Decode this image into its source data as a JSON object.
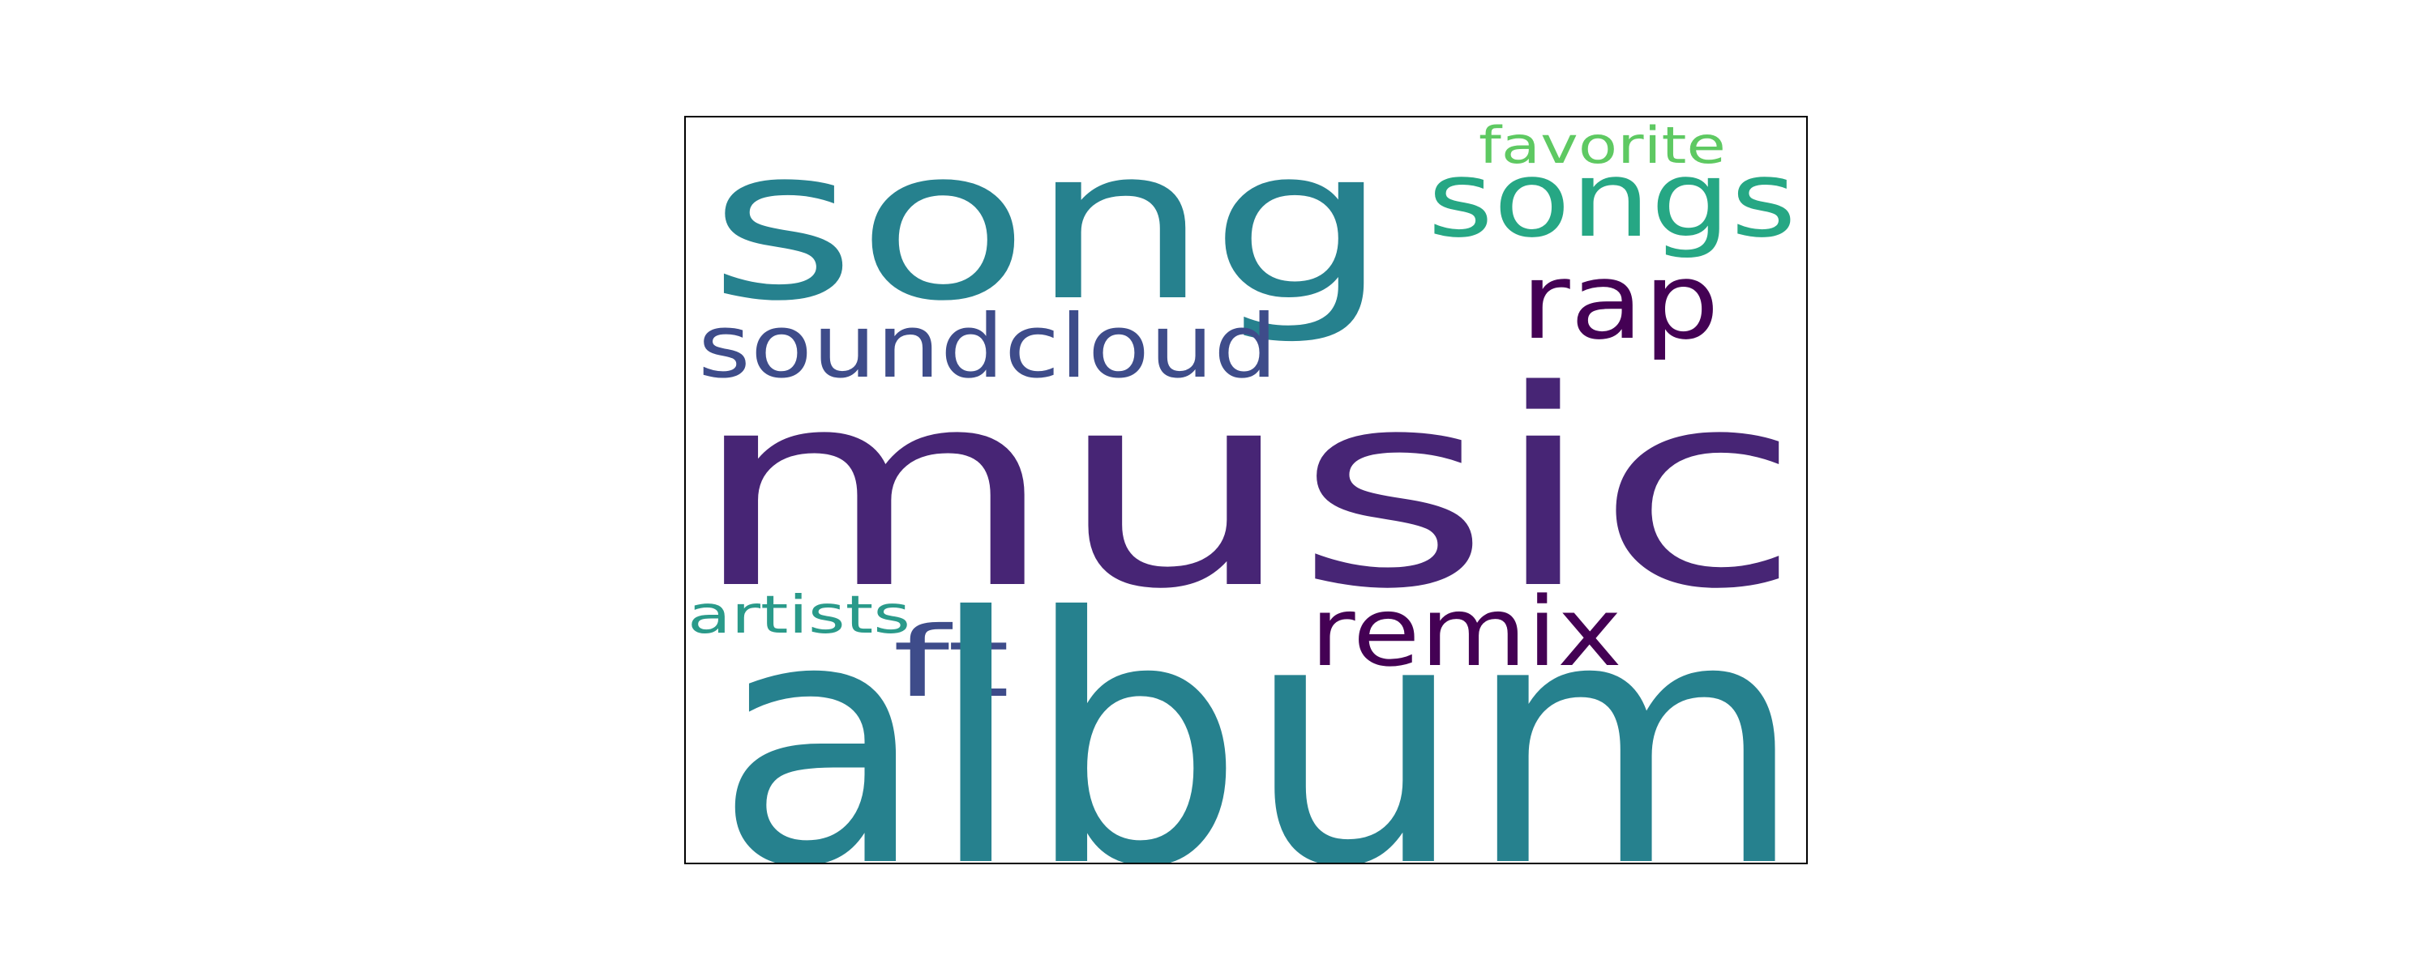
{
  "word_cloud": {
    "words": [
      {
        "text": "song",
        "color": "#26818e"
      },
      {
        "text": "songs",
        "color": "#26a784"
      },
      {
        "text": "favorite",
        "color": "#5ec962"
      },
      {
        "text": "soundcloud",
        "color": "#3e4c8a"
      },
      {
        "text": "rap",
        "color": "#440154"
      },
      {
        "text": "music",
        "color": "#472575"
      },
      {
        "text": "artists",
        "color": "#2a9a8a"
      },
      {
        "text": "ft",
        "color": "#3e4c8a"
      },
      {
        "text": "remix",
        "color": "#440154"
      },
      {
        "text": "album",
        "color": "#26818e"
      }
    ]
  }
}
